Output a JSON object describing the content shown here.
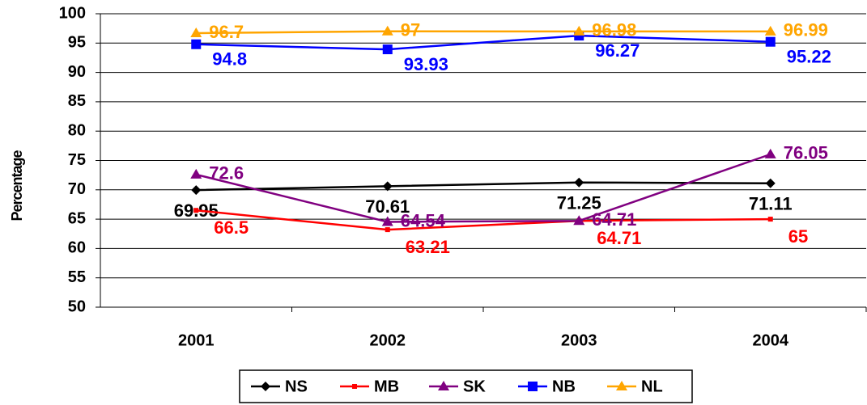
{
  "chart_data": {
    "type": "line",
    "y_label": "Percentage",
    "categories": [
      "2001",
      "2002",
      "2003",
      "2004"
    ],
    "ylim": [
      50,
      100
    ],
    "yticks": [
      50,
      55,
      60,
      65,
      70,
      75,
      80,
      85,
      90,
      95,
      100
    ],
    "grid": true,
    "legend": "bottom",
    "series": [
      {
        "name": "NS",
        "color": "#000000",
        "marker": "diamond",
        "values": [
          69.95,
          70.61,
          71.25,
          71.11
        ]
      },
      {
        "name": "MB",
        "color": "#ff0000",
        "marker": "dash",
        "values": [
          66.5,
          63.21,
          64.71,
          65
        ]
      },
      {
        "name": "SK",
        "color": "#800080",
        "marker": "triangle",
        "values": [
          72.6,
          64.54,
          64.71,
          76.05
        ]
      },
      {
        "name": "NB",
        "color": "#0000ff",
        "marker": "square",
        "values": [
          94.8,
          93.93,
          96.27,
          95.22
        ]
      },
      {
        "name": "NL",
        "color": "#ffa500",
        "marker": "triangle",
        "values": [
          96.7,
          97,
          96.98,
          96.99
        ]
      }
    ]
  }
}
